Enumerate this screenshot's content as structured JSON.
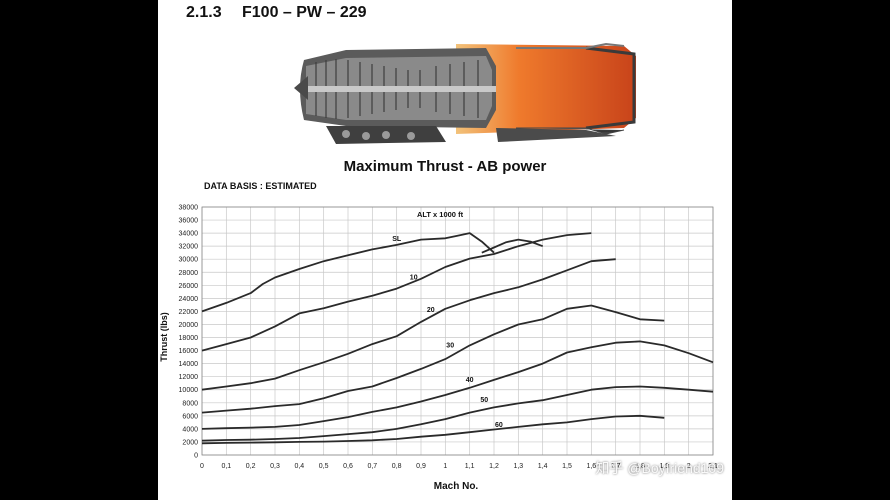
{
  "header": {
    "section_number": "2.1.3",
    "engine_name": "F100 – PW – 229"
  },
  "image": {
    "name": "engine-cutaway-illustration"
  },
  "data_basis": "DATA BASIS : ESTIMATED",
  "watermark": "知乎 @Boyfriend109",
  "chart_data": {
    "type": "line",
    "title": "Maximum Thrust - AB power",
    "xlabel": "Mach No.",
    "ylabel": "Thrust (lbs)",
    "legend_title": "ALT x 1000 ft",
    "xlim": [
      0,
      2.1
    ],
    "ylim": [
      0,
      38000
    ],
    "xticks": [
      "0",
      "0,1",
      "0,2",
      "0,3",
      "0,4",
      "0,5",
      "0,6",
      "0,7",
      "0,8",
      "0,9",
      "1",
      "1,1",
      "1,2",
      "1,3",
      "1,4",
      "1,5",
      "1,6",
      "1,7",
      "1,8",
      "1,9",
      "2",
      "2,1"
    ],
    "yticks": [
      "0",
      "2000",
      "4000",
      "6000",
      "8000",
      "10000",
      "12000",
      "14000",
      "16000",
      "18000",
      "20000",
      "22000",
      "24000",
      "26000",
      "28000",
      "30000",
      "32000",
      "34000",
      "36000",
      "38000"
    ],
    "grid": true,
    "colors": {
      "line": "#2a2a2a",
      "grid": "#c8c8c8"
    },
    "series": [
      {
        "name": "SL",
        "x": [
          0,
          0.1,
          0.2,
          0.25,
          0.3,
          0.4,
          0.5,
          0.6,
          0.7,
          0.8,
          0.9,
          1.0,
          1.05,
          1.1,
          1.15,
          1.2
        ],
        "y": [
          22000,
          23300,
          24800,
          26200,
          27200,
          28500,
          29700,
          30600,
          31500,
          32200,
          33000,
          33200,
          33600,
          34000,
          32700,
          31000
        ]
      },
      {
        "name": "SL",
        "x": [
          1.15,
          1.2,
          1.25,
          1.3,
          1.35,
          1.4
        ],
        "y": [
          31000,
          31800,
          32600,
          33000,
          32700,
          32000
        ]
      },
      {
        "name": "10",
        "x": [
          0,
          0.1,
          0.2,
          0.3,
          0.4,
          0.5,
          0.6,
          0.7,
          0.8,
          0.9,
          1.0,
          1.1,
          1.2,
          1.3,
          1.4,
          1.5,
          1.6
        ],
        "y": [
          16000,
          17000,
          18000,
          19700,
          21700,
          22500,
          23500,
          24400,
          25500,
          27000,
          28800,
          30100,
          30800,
          32000,
          33000,
          33700,
          34000
        ]
      },
      {
        "name": "20",
        "x": [
          0,
          0.1,
          0.2,
          0.3,
          0.4,
          0.5,
          0.6,
          0.7,
          0.8,
          0.9,
          1.0,
          1.1,
          1.2,
          1.3,
          1.4,
          1.5,
          1.6,
          1.7,
          1.8,
          1.9
        ],
        "y": [
          10000,
          10500,
          11000,
          11700,
          13000,
          14200,
          15500,
          17000,
          18200,
          20400,
          22400,
          23700,
          24800,
          25700,
          26900,
          28300,
          29700,
          30000,
          null,
          null
        ]
      },
      {
        "name": "30",
        "x": [
          0,
          0.1,
          0.2,
          0.3,
          0.4,
          0.5,
          0.6,
          0.7,
          0.8,
          0.9,
          1.0,
          1.1,
          1.2,
          1.3,
          1.4,
          1.5,
          1.6,
          1.7,
          1.8,
          1.9
        ],
        "y": [
          6500,
          6800,
          7100,
          7500,
          7800,
          8700,
          9800,
          10500,
          11800,
          13200,
          14700,
          16800,
          18500,
          20000,
          20800,
          22400,
          22900,
          21900,
          20800,
          20600
        ]
      },
      {
        "name": "40",
        "x": [
          0,
          0.1,
          0.2,
          0.3,
          0.4,
          0.5,
          0.6,
          0.7,
          0.8,
          0.9,
          1.0,
          1.1,
          1.2,
          1.3,
          1.4,
          1.5,
          1.6,
          1.7,
          1.8,
          1.9,
          2.0,
          2.1
        ],
        "y": [
          4000,
          4100,
          4200,
          4300,
          4600,
          5200,
          5800,
          6600,
          7300,
          8200,
          9200,
          10300,
          11500,
          12700,
          14000,
          15700,
          16500,
          17200,
          17400,
          16800,
          15600,
          14200
        ]
      },
      {
        "name": "50",
        "x": [
          0,
          0.1,
          0.2,
          0.3,
          0.4,
          0.5,
          0.6,
          0.7,
          0.8,
          0.9,
          1.0,
          1.1,
          1.2,
          1.3,
          1.4,
          1.5,
          1.6,
          1.7,
          1.8,
          1.9,
          2.0,
          2.1
        ],
        "y": [
          2200,
          2300,
          2350,
          2450,
          2600,
          2900,
          3200,
          3500,
          4000,
          4700,
          5500,
          6500,
          7300,
          7900,
          8400,
          9200,
          10000,
          10400,
          10500,
          10300,
          10000,
          9700
        ]
      },
      {
        "name": "60",
        "x": [
          0,
          0.1,
          0.2,
          0.3,
          0.4,
          0.5,
          0.6,
          0.7,
          0.8,
          0.9,
          1.0,
          1.1,
          1.2,
          1.3,
          1.4,
          1.5,
          1.6,
          1.7,
          1.8,
          1.9
        ],
        "y": [
          1800,
          1850,
          1900,
          1950,
          2000,
          2050,
          2150,
          2250,
          2450,
          2800,
          3100,
          3500,
          3900,
          4300,
          4700,
          5000,
          5500,
          5900,
          6000,
          5700
        ]
      }
    ],
    "series_labels": [
      {
        "text": "SL",
        "x": 0.8,
        "y": 32800
      },
      {
        "text": "10",
        "x": 0.87,
        "y": 26900
      },
      {
        "text": "20",
        "x": 0.94,
        "y": 21900
      },
      {
        "text": "30",
        "x": 1.02,
        "y": 16500
      },
      {
        "text": "40",
        "x": 1.1,
        "y": 11200
      },
      {
        "text": "50",
        "x": 1.16,
        "y": 8100
      },
      {
        "text": "60",
        "x": 1.22,
        "y": 4300
      }
    ]
  }
}
